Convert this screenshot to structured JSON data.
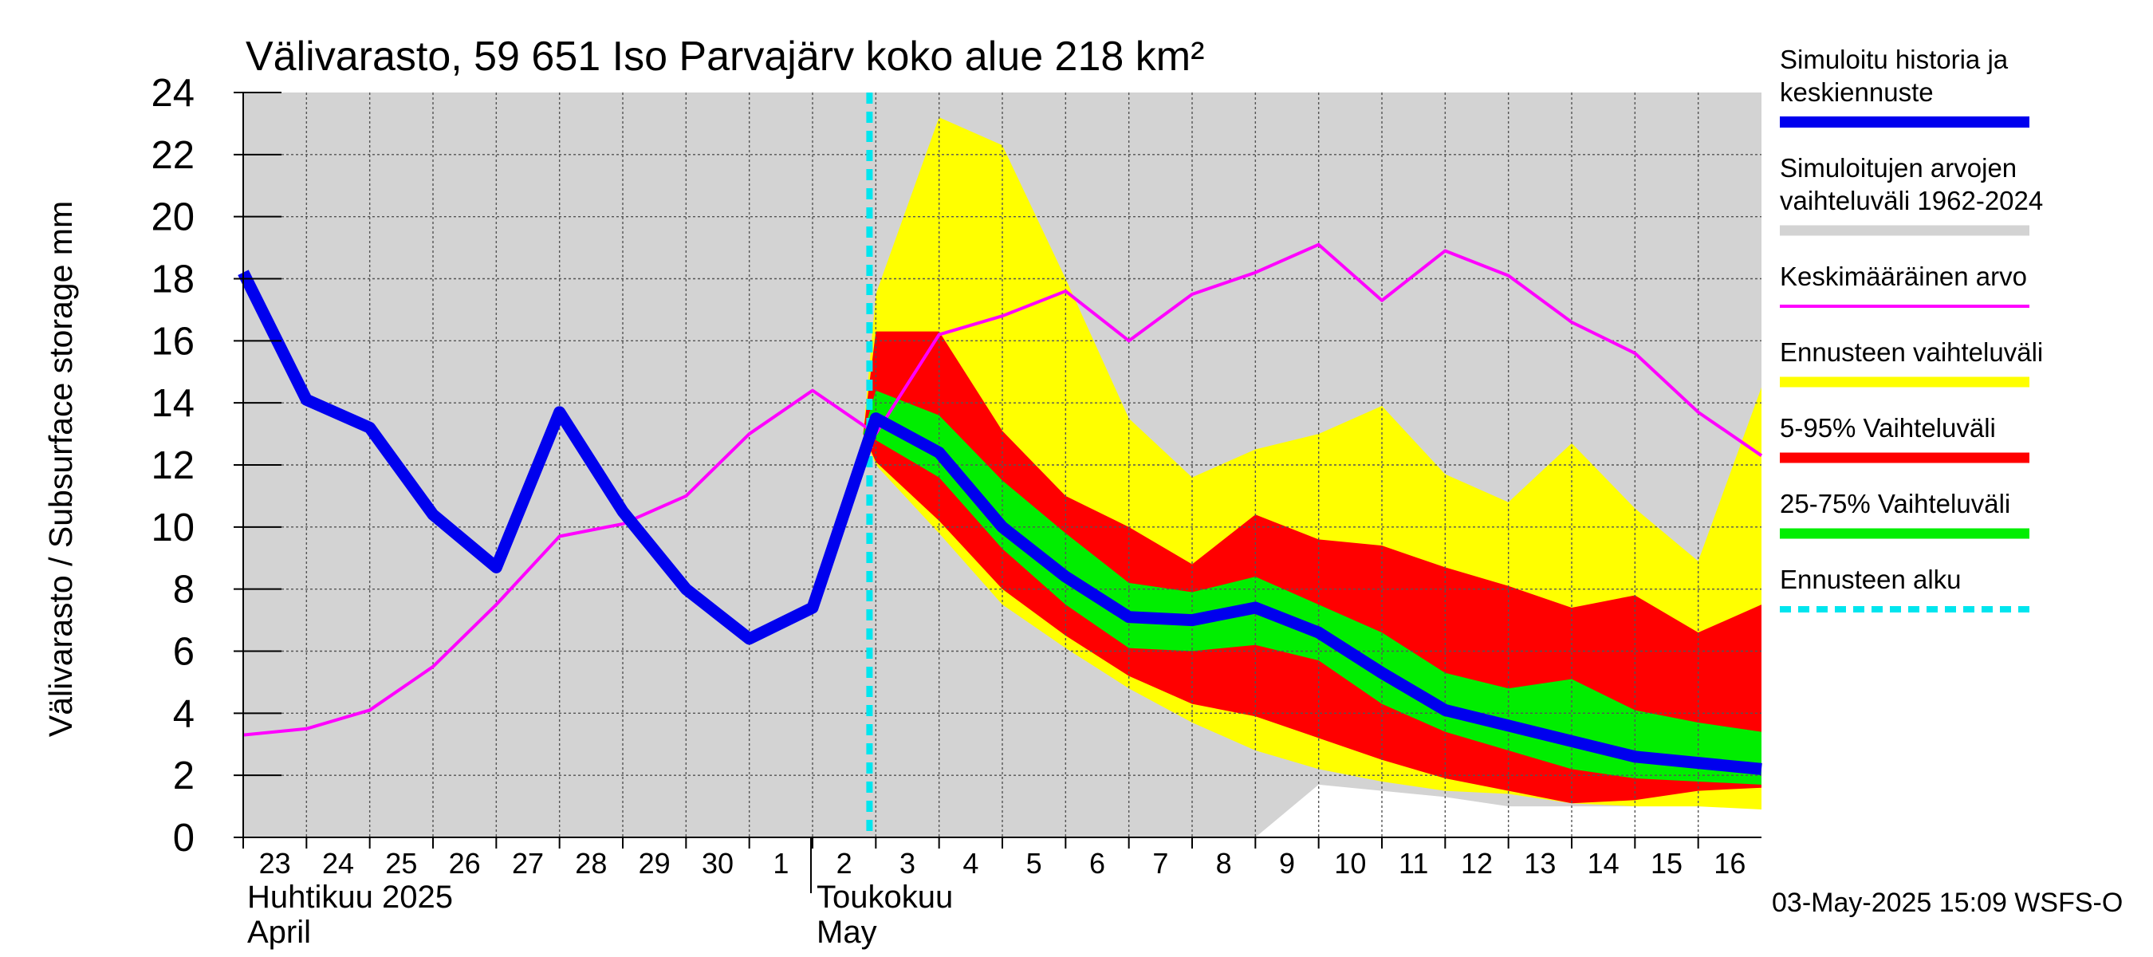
{
  "chart_data": {
    "type": "area",
    "title": "Välivarasto, 59 651 Iso Parvajärv koko alue 218 km²",
    "ylabel": "Välivarasto / Subsurface storage  mm",
    "ylim": [
      0,
      24
    ],
    "yticks": [
      0,
      2,
      4,
      6,
      8,
      10,
      12,
      14,
      16,
      18,
      20,
      22,
      24
    ],
    "grid": true,
    "legend_placement": "right",
    "x_start_day": "23",
    "x_labels": [
      "23",
      "24",
      "25",
      "26",
      "27",
      "28",
      "29",
      "30",
      "1",
      "2",
      "3",
      "4",
      "5",
      "6",
      "7",
      "8",
      "9",
      "10",
      "11",
      "12",
      "13",
      "14",
      "15",
      "16"
    ],
    "month_labels": [
      {
        "at_day_index": 0,
        "line1": "Huhtikuu  2025",
        "line2": "April"
      },
      {
        "at_day_index": 9,
        "line1": "Toukokuu",
        "line2": "May"
      }
    ],
    "forecast_start_day_index": 9.9,
    "hist_range": {
      "x": [
        0,
        1,
        2,
        3,
        4,
        5,
        6,
        7,
        8,
        9,
        10,
        11,
        12,
        13,
        14,
        15,
        16,
        17,
        18,
        19,
        20,
        21,
        22,
        23,
        24
      ],
      "upper": [
        24,
        24,
        24,
        24,
        24,
        24,
        24,
        24,
        24,
        24,
        24,
        24,
        24,
        24,
        24,
        24,
        24,
        24,
        24,
        24,
        24,
        24,
        24,
        24,
        24
      ],
      "lower": [
        0,
        0,
        0,
        0,
        0,
        0,
        0,
        0,
        0,
        0,
        0,
        0,
        0,
        0,
        0,
        0,
        0,
        1.7,
        1.5,
        1.3,
        1.0,
        1.0,
        1.0,
        1.5,
        1.7
      ]
    },
    "forecast_range": {
      "x": [
        9.8,
        10,
        11,
        12,
        13,
        14,
        15,
        16,
        17,
        18,
        19,
        20,
        21,
        22,
        23,
        24
      ],
      "upper": [
        13.0,
        17.5,
        23.2,
        22.3,
        18.0,
        13.5,
        11.6,
        12.5,
        13.0,
        13.9,
        11.7,
        10.8,
        12.7,
        10.6,
        8.9,
        14.5
      ],
      "lower": [
        13.0,
        12.0,
        9.8,
        7.5,
        6.1,
        4.8,
        3.7,
        2.8,
        2.2,
        1.8,
        1.5,
        1.4,
        1.1,
        1.0,
        1.0,
        0.9
      ]
    },
    "band_5_95": {
      "x": [
        9.8,
        10,
        11,
        12,
        13,
        14,
        15,
        16,
        17,
        18,
        19,
        20,
        21,
        22,
        23,
        24
      ],
      "upper": [
        13.0,
        16.3,
        16.3,
        13.1,
        11.0,
        10.0,
        8.8,
        10.4,
        9.6,
        9.4,
        8.7,
        8.1,
        7.4,
        7.8,
        6.6,
        7.5
      ],
      "lower": [
        13.0,
        12.1,
        10.2,
        8.0,
        6.5,
        5.2,
        4.3,
        3.9,
        3.2,
        2.5,
        1.9,
        1.5,
        1.1,
        1.2,
        1.5,
        1.6
      ]
    },
    "band_25_75": {
      "x": [
        9.8,
        10,
        11,
        12,
        13,
        14,
        15,
        16,
        17,
        18,
        19,
        20,
        21,
        22,
        23,
        24
      ],
      "upper": [
        13.0,
        14.4,
        13.6,
        11.5,
        9.8,
        8.2,
        7.9,
        8.4,
        7.5,
        6.6,
        5.3,
        4.8,
        5.1,
        4.1,
        3.7,
        3.4
      ],
      "lower": [
        13.0,
        12.8,
        11.6,
        9.3,
        7.5,
        6.1,
        6.0,
        6.2,
        5.7,
        4.3,
        3.4,
        2.8,
        2.2,
        1.9,
        1.8,
        1.7
      ]
    },
    "series": [
      {
        "name": "Simuloitu historia ja keskiennuste",
        "color": "#0000ee",
        "x": [
          0,
          1,
          2,
          3,
          4,
          5,
          6,
          7,
          8,
          9,
          10,
          11,
          12,
          13,
          14,
          15,
          16,
          17,
          18,
          19,
          20,
          21,
          22,
          23,
          24
        ],
        "values": [
          18.2,
          14.1,
          13.2,
          10.4,
          8.7,
          13.7,
          10.5,
          8.0,
          6.4,
          7.4,
          13.5,
          12.4,
          10.0,
          8.4,
          7.1,
          7.0,
          7.4,
          6.6,
          5.3,
          4.1,
          3.6,
          3.1,
          2.6,
          2.4,
          2.2
        ]
      },
      {
        "name": "Keskimääräinen arvo",
        "color": "#ff00ff",
        "x": [
          0,
          1,
          2,
          3,
          4,
          5,
          6,
          7,
          8,
          9,
          10,
          11,
          12,
          13,
          14,
          15,
          16,
          17,
          18,
          19,
          20,
          21,
          22,
          23,
          24
        ],
        "values": [
          3.3,
          3.5,
          4.1,
          5.5,
          7.5,
          9.7,
          10.1,
          11.0,
          13.0,
          14.4,
          13.0,
          16.2,
          16.8,
          17.6,
          16.0,
          17.5,
          18.2,
          19.1,
          17.3,
          18.9,
          18.1,
          16.6,
          15.6,
          13.7,
          12.3
        ]
      }
    ],
    "legend": [
      {
        "label": "Simuloitu historia ja keskiennuste",
        "color": "#0000ee",
        "style": "thick-line"
      },
      {
        "label": "Simuloitujen arvojen vaihteluväli 1962-2024",
        "color": "#d3d3d3",
        "style": "band"
      },
      {
        "label": "Keskimääräinen arvo",
        "color": "#ff00ff",
        "style": "line"
      },
      {
        "label": "Ennusteen vaihteluväli",
        "color": "#ffff00",
        "style": "band"
      },
      {
        "label": "5-95% Vaihteluväli",
        "color": "#ff0000",
        "style": "band"
      },
      {
        "label": "25-75% Vaihteluväli",
        "color": "#00ee00",
        "style": "band"
      },
      {
        "label": "Ennusteen alku",
        "color": "#00e5ee",
        "style": "dashed"
      }
    ],
    "footer": "03-May-2025 15:09 WSFS-O"
  },
  "colors": {
    "hist_band": "#d3d3d3",
    "forecast_band": "#ffff00",
    "band_5_95": "#ff0000",
    "band_25_75": "#00ee00",
    "forecast_start": "#00e5ee",
    "grid": "#555555"
  }
}
